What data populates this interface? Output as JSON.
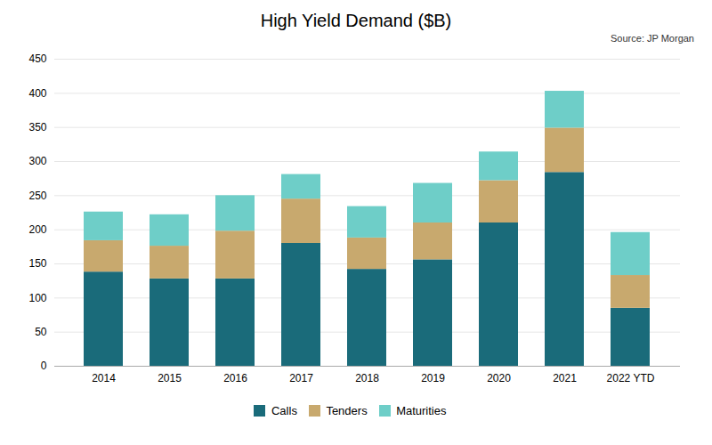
{
  "chart_data": {
    "type": "bar",
    "stacked": true,
    "title": "High Yield Demand ($B)",
    "annotations": [
      "Source: JP Morgan"
    ],
    "categories": [
      "2014",
      "2015",
      "2016",
      "2017",
      "2018",
      "2019",
      "2020",
      "2021",
      "2022 YTD"
    ],
    "series": [
      {
        "name": "Calls",
        "color": "#1a6b7a",
        "values": [
          138,
          128,
          128,
          180,
          142,
          156,
          210,
          284,
          85
        ]
      },
      {
        "name": "Tenders",
        "color": "#c8a96e",
        "values": [
          46,
          48,
          70,
          65,
          46,
          54,
          62,
          65,
          48
        ]
      },
      {
        "name": "Maturities",
        "color": "#6ecec8",
        "values": [
          42,
          46,
          52,
          36,
          46,
          58,
          42,
          54,
          63
        ]
      }
    ],
    "ylim": [
      0,
      450
    ],
    "yticks": [
      0,
      50,
      100,
      150,
      200,
      250,
      300,
      350,
      400,
      450
    ],
    "grid": true,
    "legend": "bottom"
  }
}
